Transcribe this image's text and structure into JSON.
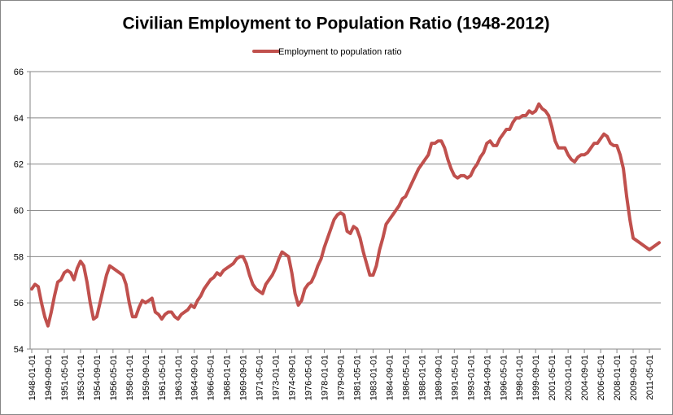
{
  "chart_data": {
    "type": "line",
    "title": "Civilian Employment to Population Ratio (1948-2012)",
    "categories": [
      "1948-01-01",
      null,
      null,
      null,
      null,
      "1949-09-01",
      null,
      null,
      null,
      null,
      "1951-05-01",
      null,
      null,
      null,
      null,
      "1953-01-01",
      null,
      null,
      null,
      null,
      "1954-09-01",
      null,
      null,
      null,
      null,
      "1956-05-01",
      null,
      null,
      null,
      null,
      "1958-01-01",
      null,
      null,
      null,
      null,
      "1959-09-01",
      null,
      null,
      null,
      null,
      "1961-05-01",
      null,
      null,
      null,
      null,
      "1963-01-01",
      null,
      null,
      null,
      null,
      "1964-09-01",
      null,
      null,
      null,
      null,
      "1966-05-01",
      null,
      null,
      null,
      null,
      "1968-01-01",
      null,
      null,
      null,
      null,
      "1969-09-01",
      null,
      null,
      null,
      null,
      "1971-05-01",
      null,
      null,
      null,
      null,
      "1973-01-01",
      null,
      null,
      null,
      null,
      "1974-09-01",
      null,
      null,
      null,
      null,
      "1976-05-01",
      null,
      null,
      null,
      null,
      "1978-01-01",
      null,
      null,
      null,
      null,
      "1979-09-01",
      null,
      null,
      null,
      null,
      "1981-05-01",
      null,
      null,
      null,
      null,
      "1983-01-01",
      null,
      null,
      null,
      null,
      "1984-09-01",
      null,
      null,
      null,
      null,
      "1986-05-01",
      null,
      null,
      null,
      null,
      "1988-01-01",
      null,
      null,
      null,
      null,
      "1989-09-01",
      null,
      null,
      null,
      null,
      "1991-05-01",
      null,
      null,
      null,
      null,
      "1993-01-01",
      null,
      null,
      null,
      null,
      "1994-09-01",
      null,
      null,
      null,
      null,
      "1996-05-01",
      null,
      null,
      null,
      null,
      "1998-01-01",
      null,
      null,
      null,
      null,
      "1999-09-01",
      null,
      null,
      null,
      null,
      "2001-05-01",
      null,
      null,
      null,
      null,
      "2003-01-01",
      null,
      null,
      null,
      null,
      "2004-09-01",
      null,
      null,
      null,
      null,
      "2006-05-01",
      null,
      null,
      null,
      null,
      "2008-01-01",
      null,
      null,
      null,
      null,
      "2009-09-01",
      null,
      null,
      null,
      null,
      "2011-05-01",
      null,
      null,
      null
    ],
    "series": [
      {
        "name": "Employment to population ratio",
        "color": "#c0504d",
        "values": [
          56.6,
          56.8,
          56.7,
          56.0,
          55.4,
          55.0,
          55.6,
          56.3,
          56.9,
          57.0,
          57.3,
          57.4,
          57.3,
          57.0,
          57.5,
          57.8,
          57.6,
          56.9,
          56.0,
          55.3,
          55.4,
          56.0,
          56.6,
          57.2,
          57.6,
          57.5,
          57.4,
          57.3,
          57.2,
          56.8,
          56.0,
          55.4,
          55.4,
          55.8,
          56.1,
          56.0,
          56.1,
          56.2,
          55.6,
          55.5,
          55.3,
          55.5,
          55.6,
          55.6,
          55.4,
          55.3,
          55.5,
          55.6,
          55.7,
          55.9,
          55.8,
          56.1,
          56.3,
          56.6,
          56.8,
          57.0,
          57.1,
          57.3,
          57.2,
          57.4,
          57.5,
          57.6,
          57.7,
          57.9,
          58.0,
          58.0,
          57.7,
          57.2,
          56.8,
          56.6,
          56.5,
          56.4,
          56.8,
          57.0,
          57.2,
          57.5,
          57.9,
          58.2,
          58.1,
          58.0,
          57.3,
          56.4,
          55.9,
          56.1,
          56.6,
          56.8,
          56.9,
          57.2,
          57.6,
          57.9,
          58.4,
          58.8,
          59.2,
          59.6,
          59.8,
          59.9,
          59.8,
          59.1,
          59.0,
          59.3,
          59.2,
          58.8,
          58.2,
          57.7,
          57.2,
          57.2,
          57.6,
          58.3,
          58.8,
          59.4,
          59.6,
          59.8,
          60.0,
          60.2,
          60.5,
          60.6,
          60.9,
          61.2,
          61.5,
          61.8,
          62.0,
          62.2,
          62.4,
          62.9,
          62.9,
          63.0,
          63.0,
          62.7,
          62.2,
          61.8,
          61.5,
          61.4,
          61.5,
          61.5,
          61.4,
          61.5,
          61.8,
          62.0,
          62.3,
          62.5,
          62.9,
          63.0,
          62.8,
          62.8,
          63.1,
          63.3,
          63.5,
          63.5,
          63.8,
          64.0,
          64.0,
          64.1,
          64.1,
          64.3,
          64.2,
          64.3,
          64.6,
          64.4,
          64.3,
          64.1,
          63.6,
          63.0,
          62.7,
          62.7,
          62.7,
          62.4,
          62.2,
          62.1,
          62.3,
          62.4,
          62.4,
          62.5,
          62.7,
          62.9,
          62.9,
          63.1,
          63.3,
          63.2,
          62.9,
          62.8,
          62.8,
          62.4,
          61.8,
          60.6,
          59.6,
          58.8,
          58.7,
          58.6,
          58.5,
          58.4,
          58.3,
          58.4,
          58.5,
          58.6
        ]
      }
    ],
    "ylim": [
      54,
      66
    ],
    "yticks": [
      54,
      56,
      58,
      60,
      62,
      64,
      66
    ],
    "grid": true,
    "legend": "top"
  }
}
